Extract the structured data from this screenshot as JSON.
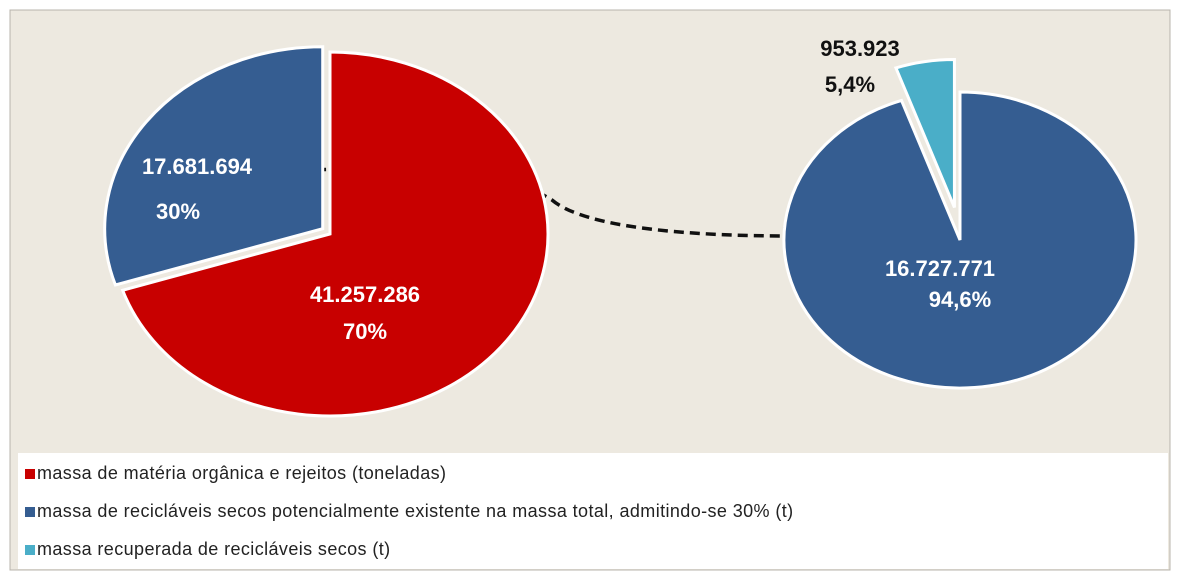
{
  "chart_data": [
    {
      "type": "pie",
      "values": [
        41257286,
        17681694
      ],
      "value_labels": [
        "41.257.286",
        "17.681.694"
      ],
      "percentages": [
        70,
        30
      ],
      "percentage_labels": [
        "70%",
        "30%"
      ],
      "colors": [
        "#c80000",
        "#355d91"
      ]
    },
    {
      "type": "pie",
      "values": [
        16727771,
        953923
      ],
      "value_labels": [
        "16.727.771",
        "953.923"
      ],
      "percentages": [
        94.6,
        5.4
      ],
      "percentage_labels": [
        "94,6%",
        "5,4%"
      ],
      "colors": [
        "#355d91",
        "#4aaec8"
      ]
    }
  ],
  "legend": [
    {
      "name": "massa de matéria orgânica e rejeitos (toneladas)",
      "color": "#c80000"
    },
    {
      "name": "massa de recicláveis secos potencialmente existente na massa total, admitindo-se 30% (t)",
      "color": "#355d91"
    },
    {
      "name": "massa recuperada de recicláveis secos (t)",
      "color": "#4aaec8"
    }
  ]
}
